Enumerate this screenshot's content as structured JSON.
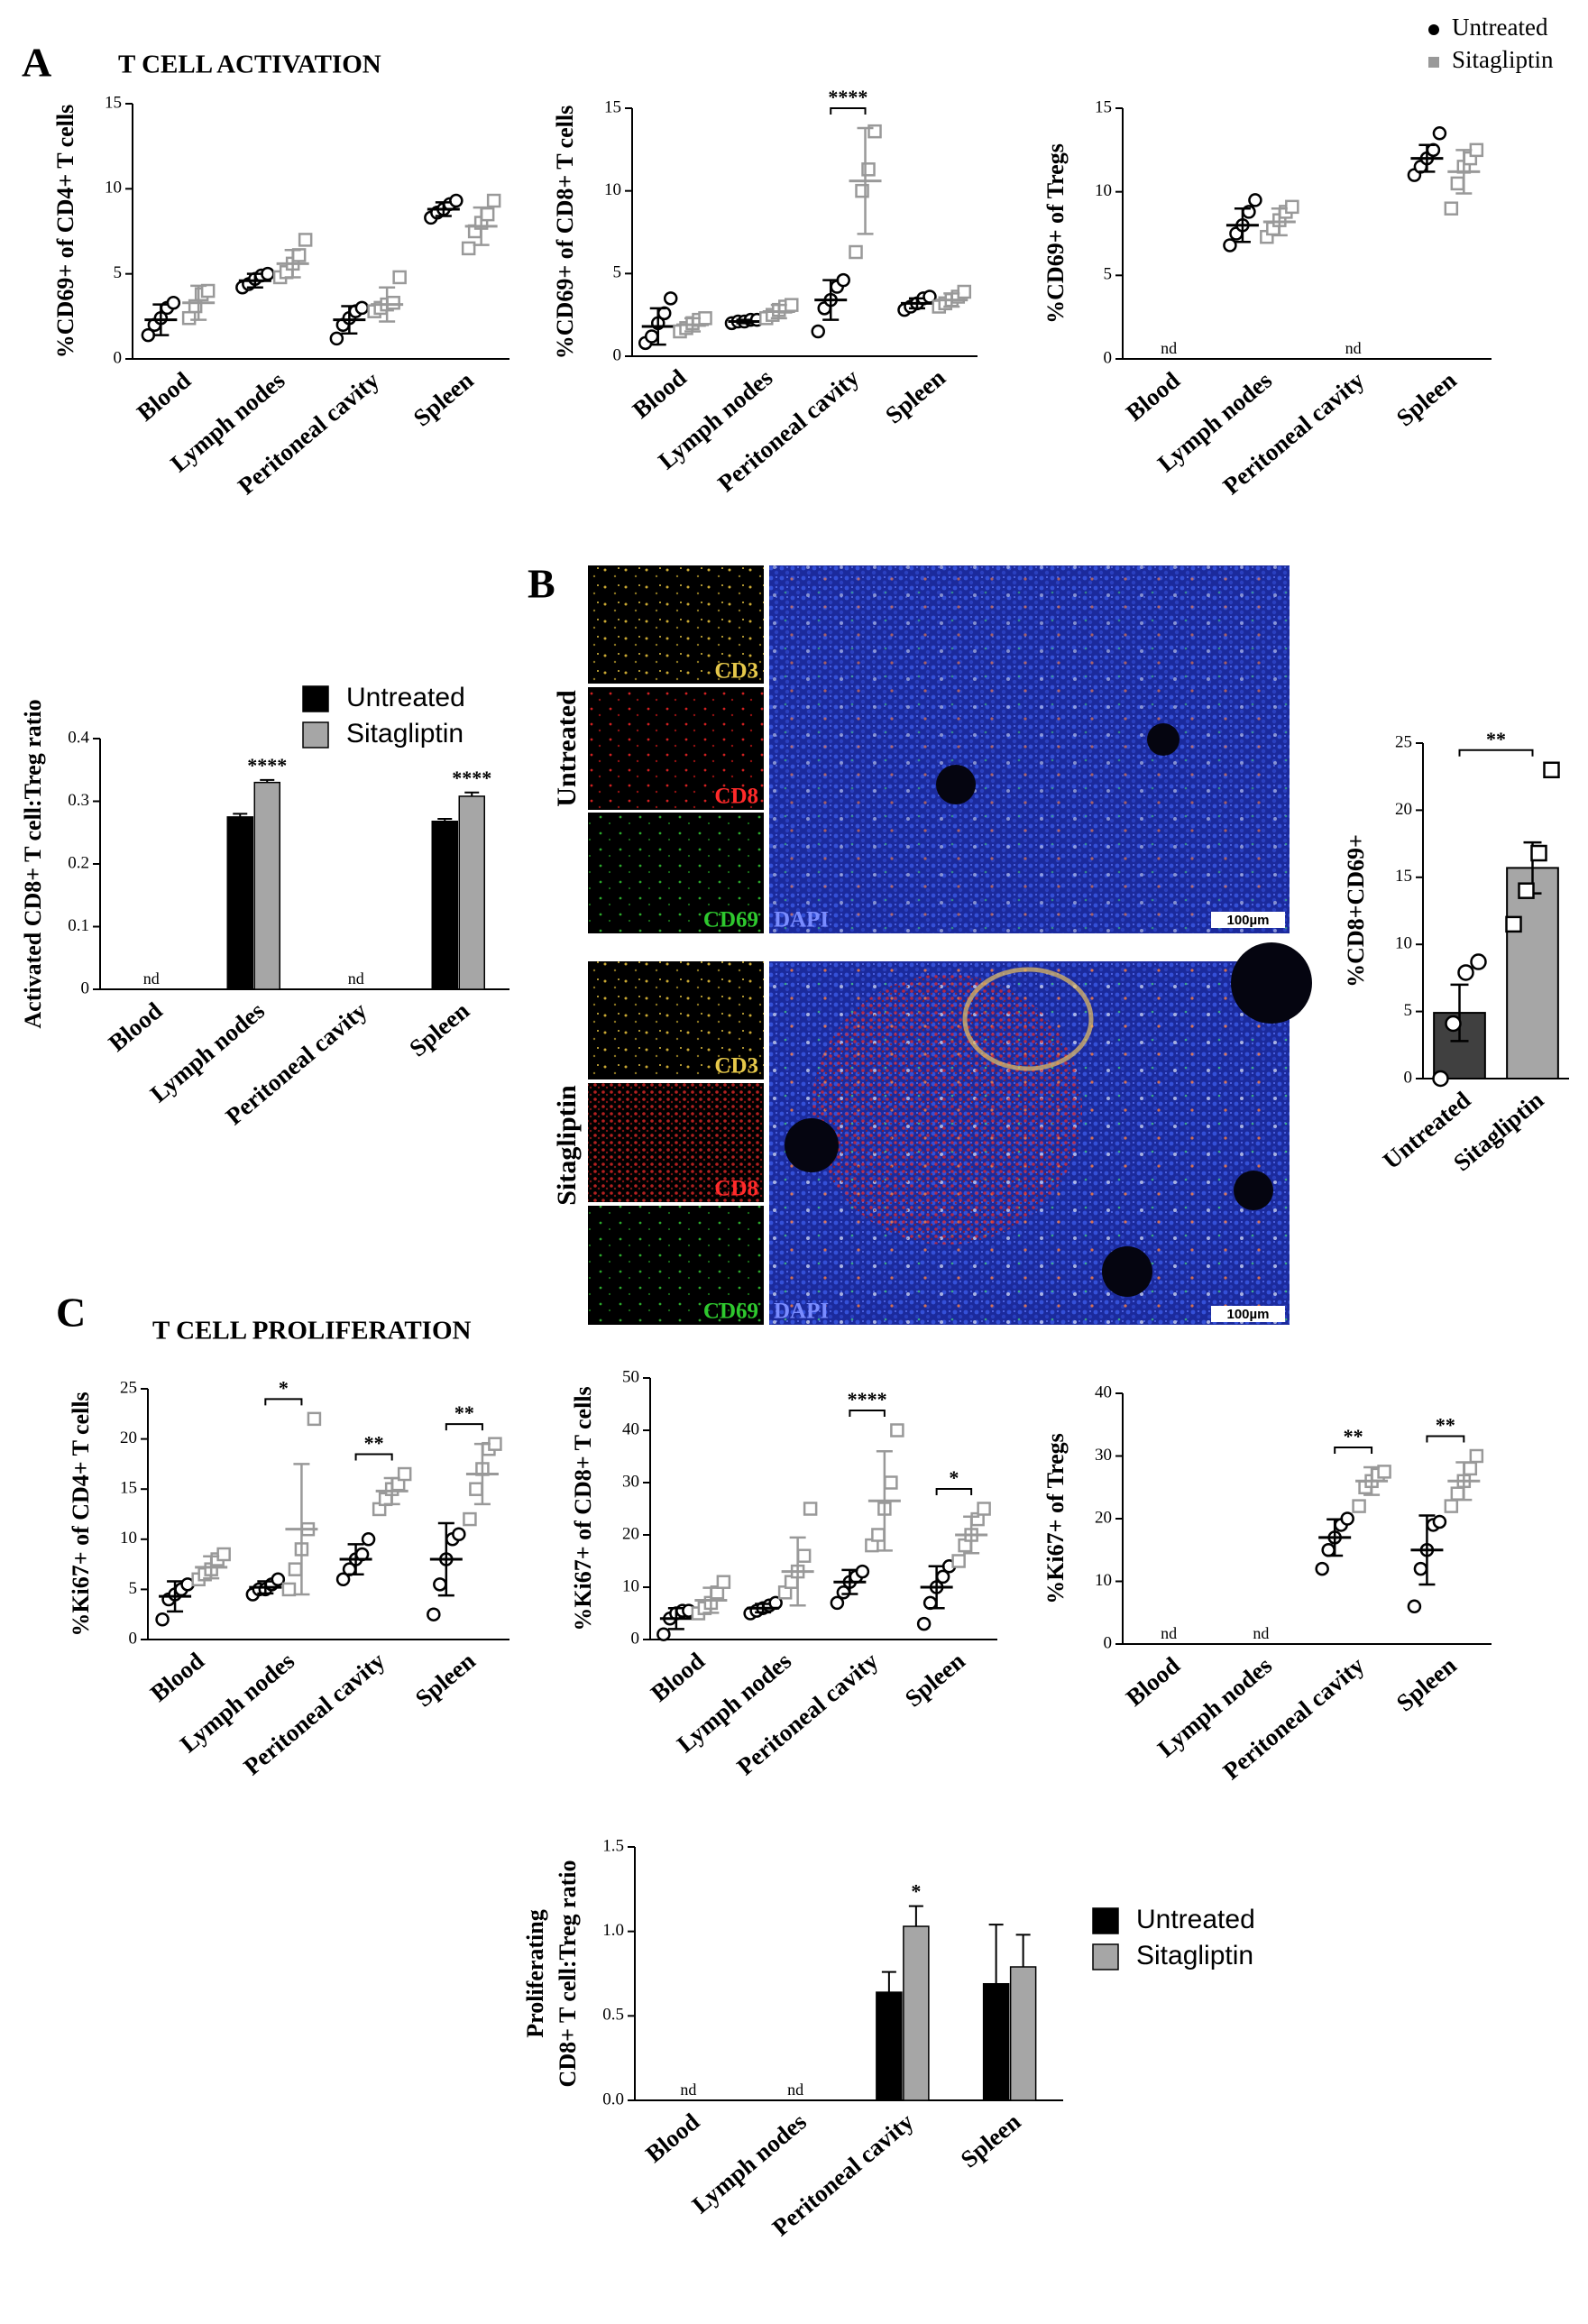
{
  "panels": {
    "A": {
      "letter": "A",
      "title": "T CELL ACTIVATION"
    },
    "B": {
      "letter": "B"
    },
    "C": {
      "letter": "C",
      "title": "T CELL PROLIFERATION"
    }
  },
  "micrographs": {
    "rows": [
      {
        "label": "Untreated",
        "channels": [
          "CD3",
          "CD8",
          "CD69"
        ],
        "merge": "DAPI",
        "scale": "100µm"
      },
      {
        "label": "Sitagliptin",
        "channels": [
          "CD3",
          "CD8",
          "CD69"
        ],
        "merge": "DAPI",
        "scale": "100µm"
      }
    ]
  },
  "chart_data": [
    {
      "type": "dot",
      "ylabel": "%CD69+ of CD4+ T cells",
      "categories": [
        "Blood",
        "Lymph nodes",
        "Peritoneal cavity",
        "Spleen"
      ],
      "ylim": [
        0,
        15
      ],
      "yticks": [
        0,
        5,
        10,
        15
      ],
      "legend": true,
      "annotation_style": "bracket",
      "series": [
        {
          "name": "Untreated",
          "color": "#000000",
          "marker": "circle",
          "values": [
            2.3,
            4.6,
            2.3,
            8.8
          ],
          "errors": [
            0.9,
            0.4,
            0.8,
            0.4
          ],
          "points": [
            [
              1.4,
              2,
              2.4,
              3,
              3.3
            ],
            [
              4.2,
              4.4,
              4.7,
              4.9,
              5
            ],
            [
              1.2,
              2,
              2.4,
              2.8,
              3
            ],
            [
              8.3,
              8.6,
              8.8,
              9.1,
              9.3
            ]
          ]
        },
        {
          "name": "Sitagliptin",
          "color": "#999999",
          "marker": "square",
          "values": [
            3.3,
            5.6,
            3.2,
            7.8
          ],
          "errors": [
            1,
            0.8,
            1,
            1.1
          ],
          "points": [
            [
              2.4,
              3.1,
              3.8,
              4
            ],
            [
              4.8,
              5.1,
              5.6,
              6.1,
              7
            ],
            [
              2.8,
              3,
              3.2,
              3.3,
              4.8
            ],
            [
              6.5,
              7.5,
              8,
              8.5,
              9.3
            ]
          ]
        }
      ]
    },
    {
      "type": "dot",
      "ylabel": "%CD69+ of CD8+ T cells",
      "categories": [
        "Blood",
        "Lymph nodes",
        "Peritoneal cavity",
        "Spleen"
      ],
      "ylim": [
        0,
        15
      ],
      "yticks": [
        0,
        5,
        10,
        15
      ],
      "annotation_style": "bracket",
      "annotations": [
        {
          "text": "****",
          "category": 2
        }
      ],
      "series": [
        {
          "name": "Untreated",
          "color": "#000000",
          "marker": "circle",
          "values": [
            1.8,
            2.1,
            3.4,
            3.2
          ],
          "errors": [
            1.1,
            0.1,
            1.2,
            0.3
          ],
          "points": [
            [
              0.8,
              1.2,
              2,
              2.6,
              3.5
            ],
            [
              2,
              2.1,
              2.1,
              2.2,
              2.2
            ],
            [
              1.5,
              2.9,
              3.4,
              4.2,
              4.6
            ],
            [
              2.8,
              3,
              3.2,
              3.5,
              3.6
            ]
          ]
        },
        {
          "name": "Sitagliptin",
          "color": "#999999",
          "marker": "square",
          "values": [
            1.9,
            2.7,
            10.6,
            3.4
          ],
          "errors": [
            0.4,
            0.4,
            3.2,
            0.4
          ],
          "points": [
            [
              1.5,
              1.7,
              2,
              2.2,
              2.3
            ],
            [
              2.3,
              2.5,
              2.8,
              3,
              3.1
            ],
            [
              6.3,
              10,
              11.3,
              13.6
            ],
            [
              3,
              3.2,
              3.4,
              3.6,
              3.9
            ]
          ]
        }
      ]
    },
    {
      "type": "dot",
      "ylabel": "%CD69+ of Tregs",
      "categories": [
        "Blood",
        "Lymph nodes",
        "Peritoneal cavity",
        "Spleen"
      ],
      "ylim": [
        0,
        15
      ],
      "yticks": [
        0,
        5,
        10,
        15
      ],
      "missing_labels": [
        "nd",
        null,
        "nd",
        null
      ],
      "series": [
        {
          "name": "Untreated",
          "color": "#000000",
          "marker": "circle",
          "values": [
            null,
            8,
            null,
            12
          ],
          "errors": [
            null,
            1,
            null,
            0.8
          ],
          "points": [
            null,
            [
              6.8,
              7.5,
              8,
              8.8,
              9.5
            ],
            null,
            [
              11,
              11.5,
              12,
              12.5,
              13.5
            ]
          ]
        },
        {
          "name": "Sitagliptin",
          "color": "#999999",
          "marker": "square",
          "values": [
            null,
            8.2,
            null,
            11.2
          ],
          "errors": [
            null,
            0.8,
            null,
            1.3
          ],
          "points": [
            null,
            [
              7.3,
              7.8,
              8.3,
              8.8,
              9.1
            ],
            null,
            [
              9,
              10.5,
              11.5,
              12,
              12.5
            ]
          ]
        }
      ]
    },
    {
      "type": "bar",
      "ylabel": "Activated CD8+ T cell:Treg ratio",
      "categories": [
        "Blood",
        "Lymph nodes",
        "Peritoneal cavity",
        "Spleen"
      ],
      "ylim": [
        0,
        0.4
      ],
      "yticks": [
        0,
        0.1,
        0.2,
        0.3,
        0.4
      ],
      "legend": true,
      "missing_labels": [
        "nd",
        null,
        "nd",
        null
      ],
      "annotation_style": "text",
      "annotations": [
        {
          "text": "****",
          "category": 1
        },
        {
          "text": "****",
          "category": 3
        }
      ],
      "series": [
        {
          "name": "Untreated",
          "color": "#000000",
          "values": [
            null,
            0.275,
            null,
            0.268
          ],
          "errors": [
            null,
            0.005,
            null,
            0.004
          ]
        },
        {
          "name": "Sitagliptin",
          "color": "#a6a6a6",
          "values": [
            null,
            0.33,
            null,
            0.308
          ],
          "errors": [
            null,
            0.004,
            null,
            0.006
          ]
        }
      ]
    },
    {
      "type": "bar",
      "ylabel": "%CD8+CD69+",
      "categories": [
        "Untreated",
        "Sitagliptin"
      ],
      "ylim": [
        0,
        25
      ],
      "yticks": [
        0,
        5,
        10,
        15,
        20,
        25
      ],
      "values": [
        4.9,
        15.7
      ],
      "errors": [
        2.1,
        1.9
      ],
      "points": [
        [
          0,
          4.1,
          7.9,
          8.7
        ],
        [
          11.5,
          14,
          16.8,
          23
        ]
      ],
      "colors": [
        "#404040",
        "#a6a6a6"
      ],
      "markers": [
        "circle",
        "square"
      ],
      "annotation_style": "bracket",
      "annotations": [
        {
          "text": "**"
        }
      ]
    },
    {
      "type": "dot",
      "ylabel": "%Ki67+ of CD4+ T cells",
      "categories": [
        "Blood",
        "Lymph nodes",
        "Peritoneal cavity",
        "Spleen"
      ],
      "ylim": [
        0,
        25
      ],
      "yticks": [
        0,
        5,
        10,
        15,
        20,
        25
      ],
      "annotation_style": "bracket",
      "annotations": [
        {
          "text": "*",
          "category": 1
        },
        {
          "text": "**",
          "category": 2
        },
        {
          "text": "**",
          "category": 3
        }
      ],
      "series": [
        {
          "name": "Untreated",
          "color": "#000000",
          "marker": "circle",
          "values": [
            4.3,
            5.2,
            8,
            8
          ],
          "errors": [
            1.5,
            0.6,
            1.5,
            3.6
          ],
          "points": [
            [
              2,
              4,
              4.5,
              5,
              5.5
            ],
            [
              4.5,
              5,
              5,
              5.5,
              6
            ],
            [
              6,
              7,
              8,
              8.5,
              10
            ],
            [
              2.5,
              5.5,
              8,
              10,
              10.5
            ]
          ]
        },
        {
          "name": "Sitagliptin",
          "color": "#999999",
          "marker": "square",
          "values": [
            7.2,
            11,
            14.8,
            16.5
          ],
          "errors": [
            1.1,
            6.5,
            1.3,
            3
          ],
          "points": [
            [
              6,
              6.5,
              7,
              8,
              8.5
            ],
            [
              5,
              7,
              9,
              11,
              22
            ],
            [
              13,
              14,
              15,
              15.5,
              16.5
            ],
            [
              12,
              15,
              17,
              19,
              19.5
            ]
          ]
        }
      ]
    },
    {
      "type": "dot",
      "ylabel": "%Ki67+ of CD8+ T cells",
      "categories": [
        "Blood",
        "Lymph nodes",
        "Peritoneal cavity",
        "Spleen"
      ],
      "ylim": [
        0,
        50
      ],
      "yticks": [
        0,
        10,
        20,
        30,
        40,
        50
      ],
      "annotation_style": "bracket",
      "annotations": [
        {
          "text": "****",
          "category": 2
        },
        {
          "text": "*",
          "category": 3
        }
      ],
      "series": [
        {
          "name": "Untreated",
          "color": "#000000",
          "marker": "circle",
          "values": [
            4,
            6,
            11,
            10
          ],
          "errors": [
            2,
            0.8,
            2.3,
            4
          ],
          "points": [
            [
              1,
              4,
              5,
              5.5,
              5.5
            ],
            [
              5,
              5.5,
              6,
              6.5,
              7
            ],
            [
              7,
              9,
              11,
              12,
              13
            ],
            [
              3,
              7,
              10,
              12,
              14
            ]
          ]
        },
        {
          "name": "Sitagliptin",
          "color": "#999999",
          "marker": "square",
          "values": [
            7.5,
            13,
            26.5,
            20
          ],
          "errors": [
            2.4,
            6.5,
            9.5,
            3.5
          ],
          "points": [
            [
              5,
              6,
              7,
              9,
              11
            ],
            [
              9,
              11,
              13,
              16,
              25
            ],
            [
              18,
              20,
              25,
              30,
              40
            ],
            [
              15,
              18,
              20,
              23,
              25
            ]
          ]
        }
      ]
    },
    {
      "type": "dot",
      "ylabel": "%Ki67+ of Tregs",
      "categories": [
        "Blood",
        "Lymph nodes",
        "Peritoneal cavity",
        "Spleen"
      ],
      "ylim": [
        0,
        40
      ],
      "yticks": [
        0,
        10,
        20,
        30,
        40
      ],
      "missing_labels": [
        "nd",
        "nd",
        null,
        null
      ],
      "annotation_style": "bracket",
      "annotations": [
        {
          "text": "**",
          "category": 2
        },
        {
          "text": "**",
          "category": 3
        }
      ],
      "series": [
        {
          "name": "Untreated",
          "color": "#000000",
          "marker": "circle",
          "values": [
            null,
            null,
            17,
            15
          ],
          "errors": [
            null,
            null,
            2.9,
            5.5
          ],
          "points": [
            null,
            null,
            [
              12,
              15,
              17,
              19,
              20
            ],
            [
              6,
              12,
              15,
              19,
              19.5
            ]
          ]
        },
        {
          "name": "Sitagliptin",
          "color": "#999999",
          "marker": "square",
          "values": [
            null,
            null,
            26,
            26
          ],
          "errors": [
            null,
            null,
            2.2,
            3
          ],
          "points": [
            null,
            null,
            [
              22,
              25,
              26,
              27,
              27.5
            ],
            [
              22,
              24,
              26,
              28,
              30
            ]
          ]
        }
      ]
    },
    {
      "type": "bar",
      "ylabel": [
        "Proliferating",
        "CD8+ T cell:Treg ratio"
      ],
      "categories": [
        "Blood",
        "Lymph nodes",
        "Peritoneal cavity",
        "Spleen"
      ],
      "ylim": [
        0,
        1.5
      ],
      "yticks": [
        {
          "value": 0,
          "label": "0.0"
        },
        {
          "value": 0.5,
          "label": "0.5"
        },
        {
          "value": 1,
          "label": "1.0"
        },
        {
          "value": 1.5,
          "label": "1.5"
        }
      ],
      "legend": true,
      "missing_labels": [
        "nd",
        "nd",
        null,
        null
      ],
      "annotation_style": "text",
      "annotations": [
        {
          "text": "*",
          "category": 2
        }
      ],
      "series": [
        {
          "name": "Untreated",
          "color": "#000000",
          "values": [
            null,
            null,
            0.64,
            0.69
          ],
          "errors": [
            null,
            null,
            0.12,
            0.35
          ]
        },
        {
          "name": "Sitagliptin",
          "color": "#a6a6a6",
          "values": [
            null,
            null,
            1.03,
            0.79
          ],
          "errors": [
            null,
            null,
            0.12,
            0.19
          ]
        }
      ]
    }
  ]
}
